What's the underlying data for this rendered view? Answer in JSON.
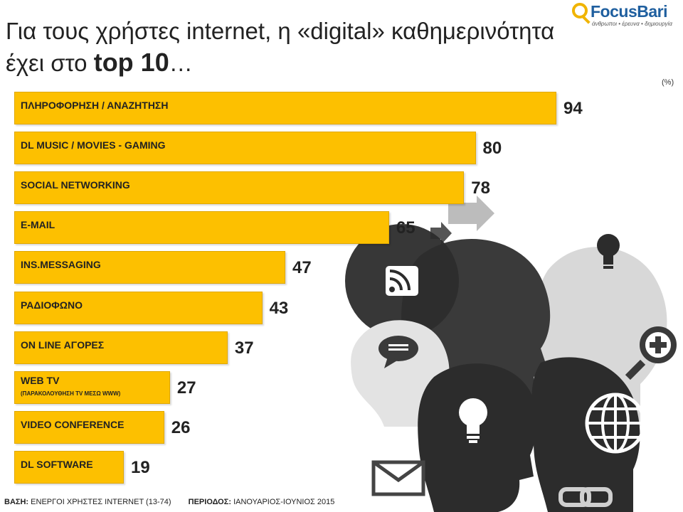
{
  "header": {
    "title_line1": "Για τους χρήστες internet, η «digital» καθημερινότητα",
    "title_line2_prefix": "έχει στο ",
    "title_line2_strong": "top 10",
    "title_line2_suffix": "…"
  },
  "logo": {
    "name": "FocusBari",
    "tagline": "άνθρωποι • έρευνα • δημιουργία"
  },
  "chart_data": {
    "type": "bar",
    "orientation": "horizontal",
    "unit_label": "(%)",
    "xlim": [
      0,
      100
    ],
    "categories": [
      "ΠΛΗΡΟΦΟΡΗΣΗ / ΑΝΑΖΗΤΗΣΗ",
      "DL MUSIC / MOVIES - GAMING",
      "SOCIAL NETWORKING",
      "E-MAIL",
      "INS.MESSAGING",
      "ΡΑΔΙΟΦΩΝΟ",
      "ON LINE ΑΓΟΡΕΣ",
      "WEB TV",
      "VIDEO CONFERENCE",
      "DL SOFTWARE"
    ],
    "sublabels": [
      "",
      "",
      "",
      "",
      "",
      "",
      "",
      "(ΠΑΡΑΚΟΛΟΥΘΗΣΗ TV ΜΕΣΩ WWW)",
      "",
      ""
    ],
    "values": [
      94,
      80,
      78,
      65,
      47,
      43,
      37,
      27,
      26,
      19
    ],
    "value_labels": [
      "94",
      "80",
      "78",
      "65",
      "47",
      "43",
      "37",
      "27",
      "26",
      "19"
    ],
    "bar_color": "#fdc000",
    "grid": false
  },
  "footer": {
    "base_label": "ΒΑΣΗ:",
    "base_value": "ΕΝΕΡΓΟΙ ΧΡΗΣΤΕΣ INTERNET (13-74)",
    "period_label": "ΠΕΡΙΟΔΟΣ:",
    "period_value": "ΙΑΝΟΥΑΡΙΟΣ-ΙΟΥΝΙΟΣ 2015"
  },
  "illustration": {
    "icons": [
      "rss-icon",
      "chat-bubble-icon",
      "lightbulb-icon",
      "magnifier-plus-icon",
      "globe-icon",
      "envelope-icon",
      "link-icon",
      "arrow-right-icon"
    ]
  }
}
